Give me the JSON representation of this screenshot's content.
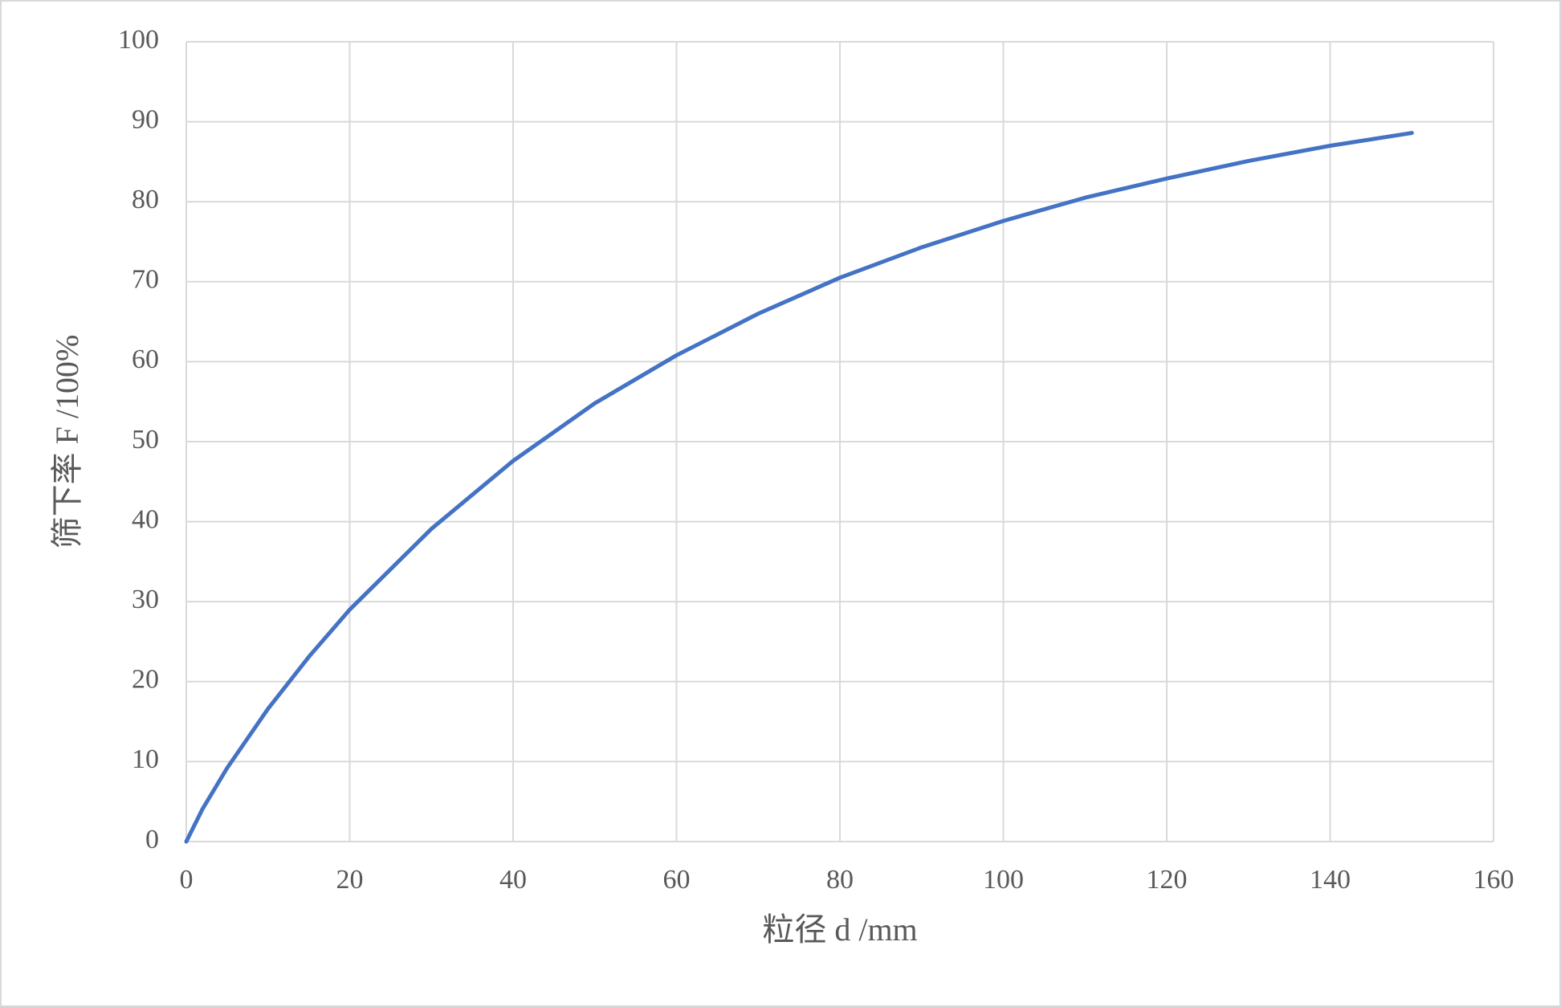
{
  "chart_data": {
    "type": "line",
    "x_label": "粒径 d /mm",
    "y_label": "筛下率 F /100%",
    "x": [
      0,
      2,
      5,
      10,
      15,
      20,
      30,
      40,
      50,
      60,
      70,
      80,
      90,
      100,
      110,
      120,
      130,
      140,
      150
    ],
    "series": [
      {
        "name": "F",
        "color": "#4472c4",
        "values": [
          0,
          4.1,
          9.2,
          16.6,
          23.1,
          29.0,
          39.1,
          47.6,
          54.8,
          60.8,
          66.0,
          70.5,
          74.3,
          77.6,
          80.5,
          82.9,
          85.1,
          87.0,
          88.6
        ]
      }
    ],
    "xlim": [
      0,
      160
    ],
    "xticks": [
      0,
      20,
      40,
      60,
      80,
      100,
      120,
      140,
      160
    ],
    "ylim": [
      0,
      100
    ],
    "yticks": [
      0,
      10,
      20,
      30,
      40,
      50,
      60,
      70,
      80,
      90,
      100
    ],
    "grid": true
  }
}
